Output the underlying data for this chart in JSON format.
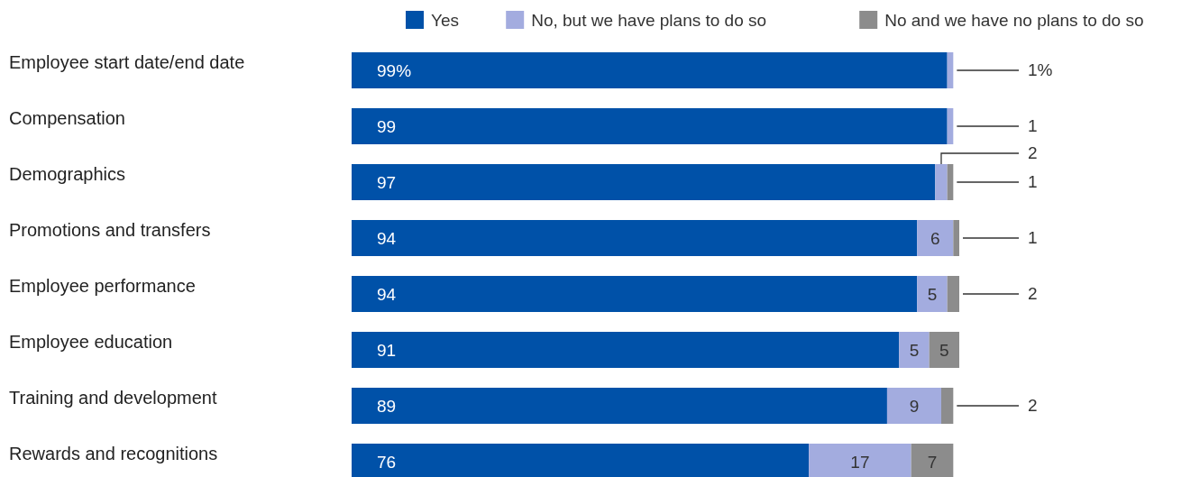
{
  "chart_data": {
    "type": "bar",
    "orientation": "horizontal",
    "stacked": true,
    "legend": "top right",
    "xlim": [
      0,
      101
    ],
    "categories": [
      "Employee start date/end date",
      "Compensation",
      "Demographics",
      "Promotions and transfers",
      "Employee performance",
      "Employee education",
      "Training and development",
      "Rewards and recognitions"
    ],
    "series": [
      {
        "name": "Yes",
        "color": "#0051a8",
        "values": [
          99,
          99,
          97,
          94,
          94,
          91,
          89,
          76
        ],
        "value_labels": [
          "99%",
          "99",
          "97",
          "94",
          "94",
          "91",
          "89",
          "76"
        ]
      },
      {
        "name": "No, but we have plans to do so",
        "color": "#a3acdf",
        "values": [
          1,
          1,
          2,
          6,
          5,
          5,
          9,
          17
        ],
        "value_labels": [
          "1%",
          "1",
          "2",
          "6",
          "5",
          "5",
          "9",
          "17"
        ]
      },
      {
        "name": "No and we have no plans to do so",
        "color": "#8c8c8c",
        "values": [
          null,
          null,
          1,
          1,
          2,
          5,
          2,
          7
        ],
        "value_labels": [
          null,
          null,
          "1",
          "1",
          "2",
          "5",
          "2",
          "7"
        ]
      }
    ]
  }
}
